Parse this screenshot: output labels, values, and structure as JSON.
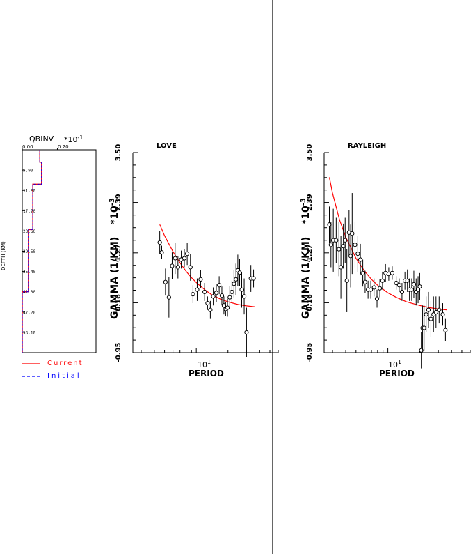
{
  "chart_data": [
    {
      "type": "line",
      "title": "QBINV",
      "exponent_label": "*10",
      "exponent_power": "-1",
      "xlabel": "",
      "ylabel": "DEPTH (KM)",
      "xticks": [
        "0.00",
        "0.20"
      ],
      "yticks": [
        "5.90",
        "11.80",
        "17.70",
        "23.60",
        "29.50",
        "35.40",
        "41.30",
        "47.20",
        "53.10"
      ],
      "xlim": [
        0,
        0.42
      ],
      "ylim": [
        0,
        59
      ],
      "legend": {
        "position": "bottom-left",
        "entries": [
          {
            "label": "Current",
            "color": "#ff0000",
            "style": "solid"
          },
          {
            "label": "Initial",
            "color": "#0000ff",
            "style": "dashed"
          }
        ]
      },
      "series": [
        {
          "name": "Current",
          "color": "#ff0000",
          "steps": [
            {
              "value": 0.1,
              "top": 0,
              "bottom": 3.6
            },
            {
              "value": 0.11,
              "top": 3.6,
              "bottom": 10
            },
            {
              "value": 0.06,
              "top": 10,
              "bottom": 23.2
            },
            {
              "value": 0.035,
              "top": 23.2,
              "bottom": 41.3
            },
            {
              "value": 0.0,
              "top": 41.3,
              "bottom": 59
            }
          ]
        },
        {
          "name": "Initial",
          "color": "#0000ff",
          "steps": [
            {
              "value": 0.1,
              "top": 0,
              "bottom": 3.6
            },
            {
              "value": 0.11,
              "top": 3.6,
              "bottom": 10
            },
            {
              "value": 0.06,
              "top": 10,
              "bottom": 23.2
            },
            {
              "value": 0.035,
              "top": 23.2,
              "bottom": 41.3
            },
            {
              "value": 0.0,
              "top": 41.3,
              "bottom": 59
            }
          ]
        }
      ]
    },
    {
      "type": "scatter",
      "title": "LOVE",
      "xlabel": "PERIOD",
      "ylabel": "GAMMA (1/KM)",
      "exponent_label": "*10",
      "exponent_power": "-3",
      "x_scale": "log",
      "xlim": [
        2.5,
        60
      ],
      "ylim": [
        -0.95,
        3.5
      ],
      "ytick_values": [
        -0.95,
        0.16,
        1.27,
        2.39,
        3.5
      ],
      "yticks": [
        "-0.95",
        "0.16",
        "1.27",
        "2.39",
        "3.50"
      ],
      "xtick_label": {
        "base": "10",
        "power": "1",
        "value": 10
      },
      "points": [
        {
          "x": 4.5,
          "y": 1.5,
          "err": 0.25
        },
        {
          "x": 4.7,
          "y": 1.28,
          "err": 0.15
        },
        {
          "x": 5.1,
          "y": 0.62,
          "err": 0.3
        },
        {
          "x": 5.5,
          "y": 0.28,
          "err": 0.45
        },
        {
          "x": 5.9,
          "y": 0.98,
          "err": 0.3
        },
        {
          "x": 6.3,
          "y": 1.15,
          "err": 0.35
        },
        {
          "x": 6.7,
          "y": 0.95,
          "err": 0.25
        },
        {
          "x": 7.2,
          "y": 1.12,
          "err": 0.2
        },
        {
          "x": 7.7,
          "y": 1.15,
          "err": 0.2
        },
        {
          "x": 8.2,
          "y": 1.25,
          "err": 0.25
        },
        {
          "x": 8.8,
          "y": 0.95,
          "err": 0.3
        },
        {
          "x": 9.3,
          "y": 0.35,
          "err": 0.2
        },
        {
          "x": 10.2,
          "y": 0.45,
          "err": 0.25
        },
        {
          "x": 11.0,
          "y": 0.68,
          "err": 0.2
        },
        {
          "x": 12.0,
          "y": 0.4,
          "err": 0.2
        },
        {
          "x": 12.8,
          "y": 0.15,
          "err": 0.15
        },
        {
          "x": 13.6,
          "y": 0.0,
          "err": 0.2
        },
        {
          "x": 14.5,
          "y": 0.3,
          "err": 0.2
        },
        {
          "x": 15.5,
          "y": 0.38,
          "err": 0.2
        },
        {
          "x": 16.5,
          "y": 0.55,
          "err": 0.2
        },
        {
          "x": 17.5,
          "y": 0.32,
          "err": 0.2
        },
        {
          "x": 18.3,
          "y": 0.1,
          "err": 0.2
        },
        {
          "x": 19.0,
          "y": 0.02,
          "err": 0.15
        },
        {
          "x": 19.8,
          "y": 0.05,
          "err": 0.2
        },
        {
          "x": 20.8,
          "y": 0.28,
          "err": 0.25
        },
        {
          "x": 21.8,
          "y": 0.4,
          "err": 0.25
        },
        {
          "x": 22.8,
          "y": 0.58,
          "err": 0.3
        },
        {
          "x": 23.8,
          "y": 0.68,
          "err": 0.35
        },
        {
          "x": 24.8,
          "y": 0.88,
          "err": 0.35
        },
        {
          "x": 25.8,
          "y": 0.83,
          "err": 0.3
        },
        {
          "x": 27.0,
          "y": 0.45,
          "err": 0.4
        },
        {
          "x": 28.5,
          "y": 0.3,
          "err": 0.4
        },
        {
          "x": 30.0,
          "y": -0.5,
          "err": 0.55
        },
        {
          "x": 33.0,
          "y": 0.7,
          "err": 0.3
        },
        {
          "x": 35.0,
          "y": 0.7,
          "err": 0.2
        }
      ],
      "fit": [
        {
          "x": 4.5,
          "y": 1.9
        },
        {
          "x": 5,
          "y": 1.65
        },
        {
          "x": 6,
          "y": 1.3
        },
        {
          "x": 7,
          "y": 1.05
        },
        {
          "x": 8,
          "y": 0.86
        },
        {
          "x": 9,
          "y": 0.72
        },
        {
          "x": 10,
          "y": 0.61
        },
        {
          "x": 12,
          "y": 0.45
        },
        {
          "x": 14,
          "y": 0.34
        },
        {
          "x": 17,
          "y": 0.24
        },
        {
          "x": 20,
          "y": 0.18
        },
        {
          "x": 25,
          "y": 0.12
        },
        {
          "x": 30,
          "y": 0.09
        },
        {
          "x": 36,
          "y": 0.07
        }
      ],
      "fit_color": "#ff0000"
    },
    {
      "type": "scatter",
      "title": "RAYLEIGH",
      "xlabel": "PERIOD",
      "ylabel": "GAMMA (1/KM)",
      "exponent_label": "*10",
      "exponent_power": "-3",
      "x_scale": "log",
      "xlim": [
        2.5,
        60
      ],
      "ylim": [
        -0.95,
        3.5
      ],
      "ytick_values": [
        -0.95,
        0.16,
        1.27,
        2.39,
        3.5
      ],
      "yticks": [
        "-0.95",
        "0.16",
        "1.27",
        "2.39",
        "3.50"
      ],
      "xtick_label": {
        "base": "10",
        "power": "1",
        "value": 10
      },
      "points": [
        {
          "x": 2.8,
          "y": 1.9,
          "err": 0.4
        },
        {
          "x": 2.9,
          "y": 1.45,
          "err": 0.5
        },
        {
          "x": 3.05,
          "y": 1.55,
          "err": 0.7
        },
        {
          "x": 3.25,
          "y": 1.55,
          "err": 0.5
        },
        {
          "x": 3.45,
          "y": 1.35,
          "err": 0.6
        },
        {
          "x": 3.6,
          "y": 0.95,
          "err": 0.7
        },
        {
          "x": 3.8,
          "y": 1.42,
          "err": 0.5
        },
        {
          "x": 3.95,
          "y": 1.55,
          "err": 0.5
        },
        {
          "x": 4.1,
          "y": 0.65,
          "err": 0.7
        },
        {
          "x": 4.3,
          "y": 1.72,
          "err": 0.5
        },
        {
          "x": 4.45,
          "y": 1.2,
          "err": 0.7
        },
        {
          "x": 4.6,
          "y": 1.7,
          "err": 0.9
        },
        {
          "x": 4.9,
          "y": 1.45,
          "err": 0.5
        },
        {
          "x": 5.2,
          "y": 1.25,
          "err": 0.4
        },
        {
          "x": 5.5,
          "y": 1.12,
          "err": 0.35
        },
        {
          "x": 5.8,
          "y": 0.82,
          "err": 0.3
        },
        {
          "x": 6.1,
          "y": 0.62,
          "err": 0.25
        },
        {
          "x": 6.5,
          "y": 0.45,
          "err": 0.2
        },
        {
          "x": 6.9,
          "y": 0.45,
          "err": 0.2
        },
        {
          "x": 7.4,
          "y": 0.5,
          "err": 0.2
        },
        {
          "x": 7.9,
          "y": 0.25,
          "err": 0.2
        },
        {
          "x": 8.4,
          "y": 0.48,
          "err": 0.2
        },
        {
          "x": 8.9,
          "y": 0.65,
          "err": 0.2
        },
        {
          "x": 9.5,
          "y": 0.82,
          "err": 0.2
        },
        {
          "x": 10.2,
          "y": 0.8,
          "err": 0.15
        },
        {
          "x": 11.0,
          "y": 0.82,
          "err": 0.15
        },
        {
          "x": 12.0,
          "y": 0.6,
          "err": 0.15
        },
        {
          "x": 12.8,
          "y": 0.55,
          "err": 0.15
        },
        {
          "x": 13.6,
          "y": 0.4,
          "err": 0.2
        },
        {
          "x": 14.5,
          "y": 0.65,
          "err": 0.2
        },
        {
          "x": 15.3,
          "y": 0.65,
          "err": 0.25
        },
        {
          "x": 16.0,
          "y": 0.45,
          "err": 0.25
        },
        {
          "x": 16.8,
          "y": 0.45,
          "err": 0.25
        },
        {
          "x": 17.6,
          "y": 0.57,
          "err": 0.3
        },
        {
          "x": 18.5,
          "y": 0.4,
          "err": 0.3
        },
        {
          "x": 19.3,
          "y": 0.45,
          "err": 0.3
        },
        {
          "x": 20.0,
          "y": 0.52,
          "err": 0.3
        },
        {
          "x": 20.7,
          "y": -0.9,
          "err": 0.4
        },
        {
          "x": 21.3,
          "y": -0.4,
          "err": 0.5
        },
        {
          "x": 22.0,
          "y": -0.4,
          "err": 0.5
        },
        {
          "x": 23.0,
          "y": -0.1,
          "err": 0.4
        },
        {
          "x": 24.2,
          "y": 0.0,
          "err": 0.4
        },
        {
          "x": 25.5,
          "y": -0.2,
          "err": 0.4
        },
        {
          "x": 27.0,
          "y": -0.1,
          "err": 0.4
        },
        {
          "x": 28.5,
          "y": -0.05,
          "err": 0.35
        },
        {
          "x": 30.5,
          "y": 0.0,
          "err": 0.3
        },
        {
          "x": 33.0,
          "y": -0.1,
          "err": 0.25
        },
        {
          "x": 35.0,
          "y": -0.45,
          "err": 0.25
        }
      ],
      "fit": [
        {
          "x": 2.8,
          "y": 2.95
        },
        {
          "x": 3,
          "y": 2.6
        },
        {
          "x": 3.5,
          "y": 2.0
        },
        {
          "x": 4,
          "y": 1.62
        },
        {
          "x": 5,
          "y": 1.15
        },
        {
          "x": 6,
          "y": 0.87
        },
        {
          "x": 7,
          "y": 0.68
        },
        {
          "x": 8,
          "y": 0.55
        },
        {
          "x": 10,
          "y": 0.38
        },
        {
          "x": 12,
          "y": 0.28
        },
        {
          "x": 15,
          "y": 0.18
        },
        {
          "x": 20,
          "y": 0.1
        },
        {
          "x": 25,
          "y": 0.05
        },
        {
          "x": 30,
          "y": 0.02
        },
        {
          "x": 36,
          "y": 0.0
        }
      ],
      "fit_color": "#ff0000"
    }
  ]
}
